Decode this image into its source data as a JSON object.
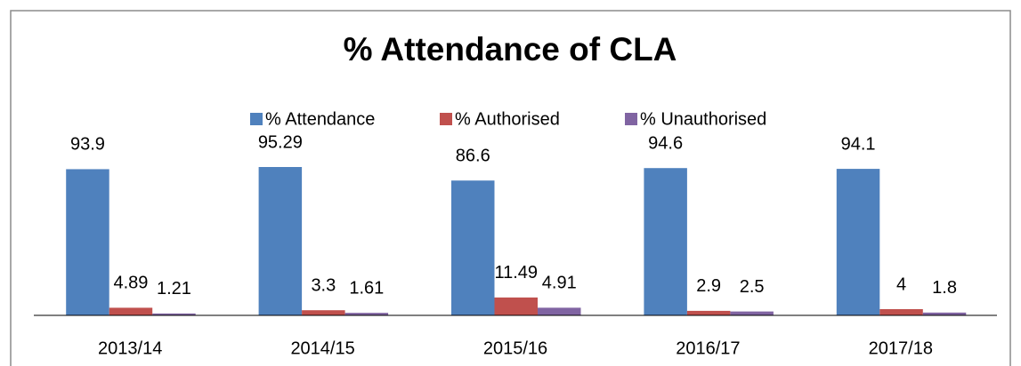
{
  "chart_data": {
    "type": "bar",
    "title": "% Attendance of CLA",
    "categories": [
      "2013/14",
      "2014/15",
      "2015/16",
      "2016/17",
      "2017/18"
    ],
    "series": [
      {
        "name": "% Attendance",
        "color": "#4f81bd",
        "values": [
          93.9,
          95.29,
          86.6,
          94.6,
          94.1
        ]
      },
      {
        "name": "% Authorised",
        "color": "#c0504d",
        "values": [
          4.89,
          3.3,
          11.49,
          2.9,
          4
        ]
      },
      {
        "name": "% Unauthorised",
        "color": "#8064a2",
        "values": [
          1.21,
          1.61,
          4.91,
          2.5,
          1.8
        ]
      }
    ],
    "legend": "top"
  }
}
